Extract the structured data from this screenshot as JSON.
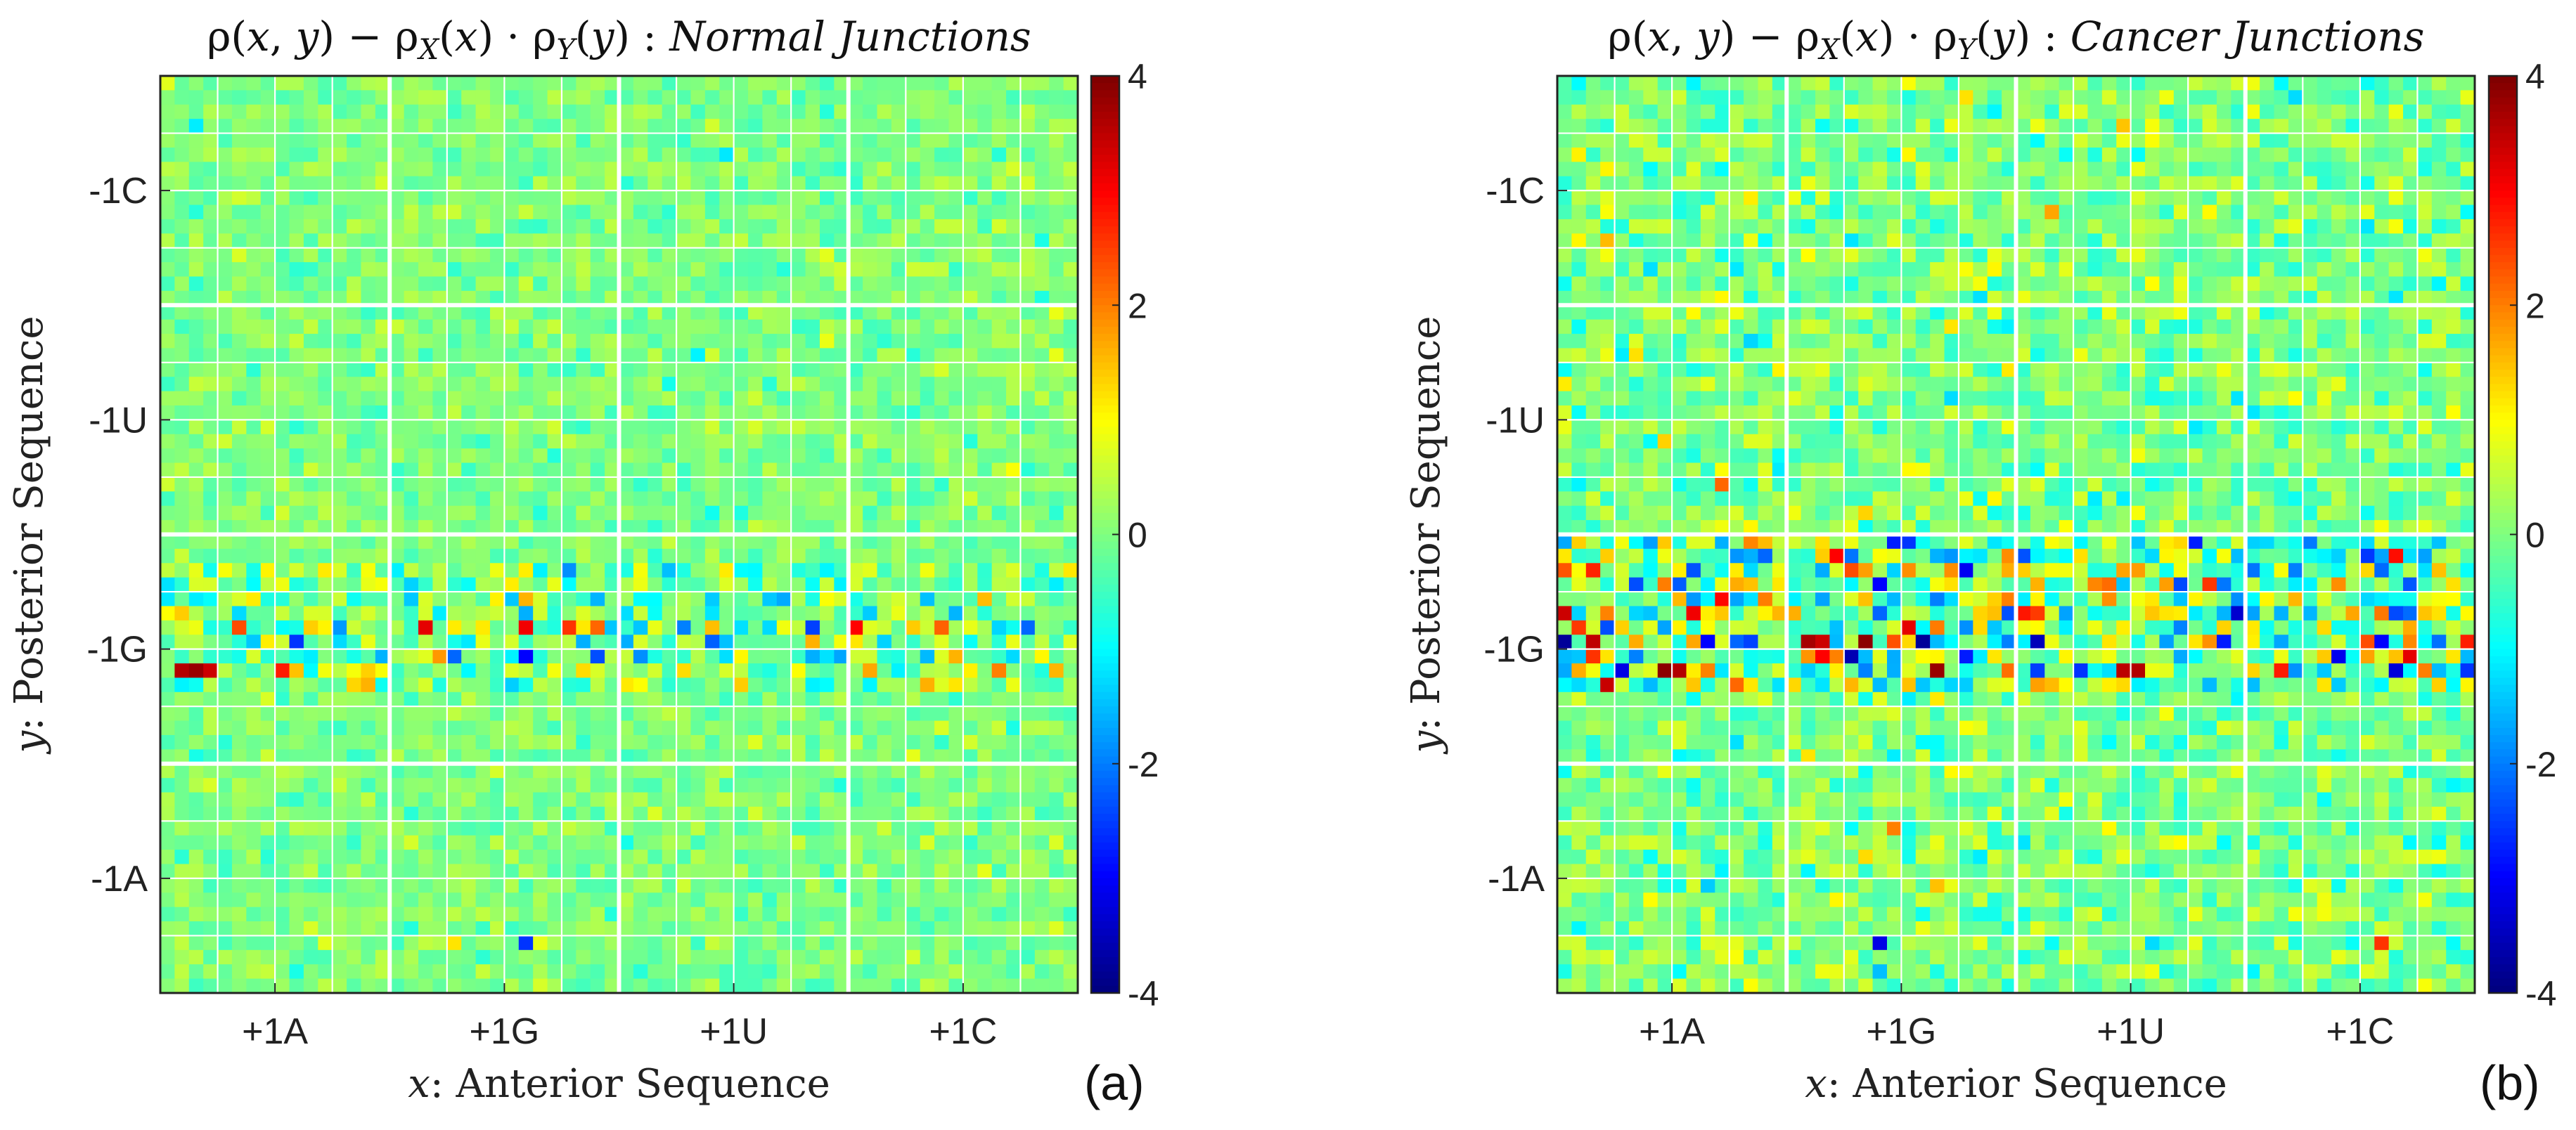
{
  "figure": {
    "panels": [
      {
        "id": "a",
        "title_math": "ρ(x, y) − ρ_X(x) · ρ_Y(y) :",
        "title_text": "Normal Junctions",
        "panel_label": "(a)"
      },
      {
        "id": "b",
        "title_math": "ρ(x, y) − ρ_X(x) · ρ_Y(y) :",
        "title_text": "Cancer Junctions",
        "panel_label": "(b)"
      }
    ]
  },
  "chart_data": [
    {
      "type": "heatmap",
      "title": "ρ(x, y) − ρX(x) · ρY(y) : Normal Junctions",
      "xlabel_var": "x",
      "xlabel_text": ": Anterior Sequence",
      "ylabel_var": "y",
      "ylabel_text": ": Posterior Sequence",
      "x_tick_labels": [
        "+1A",
        "+1G",
        "+1U",
        "+1C"
      ],
      "y_tick_labels": [
        "-1C",
        "-1U",
        "-1G",
        "-1A"
      ],
      "colorbar": {
        "colormap": "jet",
        "range": [
          -4,
          4
        ],
        "ticks": [
          4,
          2,
          0,
          -2,
          -4
        ]
      },
      "grid": {
        "cells": 64,
        "major_blocks": 4,
        "minor_blocks": 16
      },
      "notable_cells": [
        {
          "col": 1,
          "row": 41,
          "value": 3.6
        },
        {
          "col": 2,
          "row": 41,
          "value": 3.8
        },
        {
          "col": 3,
          "row": 41,
          "value": 3.4
        },
        {
          "col": 5,
          "row": 38,
          "value": 2.4
        },
        {
          "col": 9,
          "row": 39,
          "value": -2.6
        },
        {
          "col": 12,
          "row": 38,
          "value": -1.8
        },
        {
          "col": 18,
          "row": 38,
          "value": 3.2
        },
        {
          "col": 20,
          "row": 40,
          "value": -2.2
        },
        {
          "col": 25,
          "row": 36,
          "value": 1.6
        },
        {
          "col": 25,
          "row": 38,
          "value": 3.1
        },
        {
          "col": 25,
          "row": 40,
          "value": -3.0
        },
        {
          "col": 28,
          "row": 38,
          "value": 2.6
        },
        {
          "col": 30,
          "row": 40,
          "value": -2.4
        },
        {
          "col": 30,
          "row": 38,
          "value": 2.2
        },
        {
          "col": 36,
          "row": 38,
          "value": -2.0
        },
        {
          "col": 38,
          "row": 38,
          "value": 1.5
        },
        {
          "col": 45,
          "row": 38,
          "value": -2.5
        },
        {
          "col": 48,
          "row": 38,
          "value": 3.0
        },
        {
          "col": 52,
          "row": 38,
          "value": 1.4
        },
        {
          "col": 60,
          "row": 38,
          "value": -2.2
        },
        {
          "col": 25,
          "row": 60,
          "value": -2.6
        },
        {
          "col": 20,
          "row": 60,
          "value": 1.2
        },
        {
          "col": 58,
          "row": 41,
          "value": 2.0
        },
        {
          "col": 55,
          "row": 40,
          "value": 1.6
        },
        {
          "col": 8,
          "row": 41,
          "value": 2.8
        },
        {
          "col": 15,
          "row": 40,
          "value": -1.6
        }
      ],
      "hot_row_ranges": [
        [
          34,
          42
        ]
      ],
      "background_sd": 0.28,
      "hot_sd": 0.7
    },
    {
      "type": "heatmap",
      "title": "ρ(x, y) − ρX(x) · ρY(y) : Cancer Junctions",
      "xlabel_var": "x",
      "xlabel_text": ": Anterior Sequence",
      "ylabel_var": "y",
      "ylabel_text": ": Posterior Sequence",
      "x_tick_labels": [
        "+1A",
        "+1G",
        "+1U",
        "+1C"
      ],
      "y_tick_labels": [
        "-1C",
        "-1U",
        "-1G",
        "-1A"
      ],
      "colorbar": {
        "colormap": "jet",
        "range": [
          -4,
          4
        ],
        "ticks": [
          4,
          2,
          0,
          -2,
          -4
        ]
      },
      "grid": {
        "cells": 64,
        "major_blocks": 4,
        "minor_blocks": 16
      },
      "notable_cells": [
        {
          "col": 0,
          "row": 39,
          "value": -3.8
        },
        {
          "col": 2,
          "row": 39,
          "value": 3.5
        },
        {
          "col": 4,
          "row": 41,
          "value": -3.2
        },
        {
          "col": 7,
          "row": 41,
          "value": 3.9
        },
        {
          "col": 8,
          "row": 41,
          "value": 3.6
        },
        {
          "col": 10,
          "row": 39,
          "value": -3.0
        },
        {
          "col": 17,
          "row": 39,
          "value": 3.7
        },
        {
          "col": 18,
          "row": 39,
          "value": 3.4
        },
        {
          "col": 20,
          "row": 40,
          "value": -3.6
        },
        {
          "col": 21,
          "row": 39,
          "value": 3.9
        },
        {
          "col": 24,
          "row": 38,
          "value": 3.2
        },
        {
          "col": 25,
          "row": 39,
          "value": -3.8
        },
        {
          "col": 26,
          "row": 41,
          "value": 3.8
        },
        {
          "col": 28,
          "row": 40,
          "value": -2.8
        },
        {
          "col": 22,
          "row": 35,
          "value": -3.0
        },
        {
          "col": 19,
          "row": 33,
          "value": 3.0
        },
        {
          "col": 24,
          "row": 32,
          "value": -2.6
        },
        {
          "col": 9,
          "row": 37,
          "value": 3.1
        },
        {
          "col": 5,
          "row": 35,
          "value": -2.4
        },
        {
          "col": 12,
          "row": 39,
          "value": -2.2
        },
        {
          "col": 40,
          "row": 41,
          "value": 3.6
        },
        {
          "col": 36,
          "row": 41,
          "value": -2.6
        },
        {
          "col": 46,
          "row": 39,
          "value": -2.8
        },
        {
          "col": 57,
          "row": 39,
          "value": -3.0
        },
        {
          "col": 59,
          "row": 40,
          "value": 3.2
        },
        {
          "col": 50,
          "row": 41,
          "value": 2.8
        },
        {
          "col": 22,
          "row": 60,
          "value": -3.2
        },
        {
          "col": 16,
          "row": 64,
          "value": 3.0
        },
        {
          "col": 57,
          "row": 60,
          "value": 2.6
        },
        {
          "col": 11,
          "row": 28,
          "value": 2.2
        },
        {
          "col": 0,
          "row": 37,
          "value": 3.4
        },
        {
          "col": 31,
          "row": 39,
          "value": -2.0
        },
        {
          "col": 63,
          "row": 41,
          "value": -2.6
        },
        {
          "col": 14,
          "row": 33,
          "value": -2.2
        },
        {
          "col": 20,
          "row": 34,
          "value": 2.4
        },
        {
          "col": 26,
          "row": 36,
          "value": -2.0
        }
      ],
      "hot_row_ranges": [
        [
          32,
          42
        ]
      ],
      "background_sd": 0.45,
      "hot_sd": 1.2
    }
  ]
}
